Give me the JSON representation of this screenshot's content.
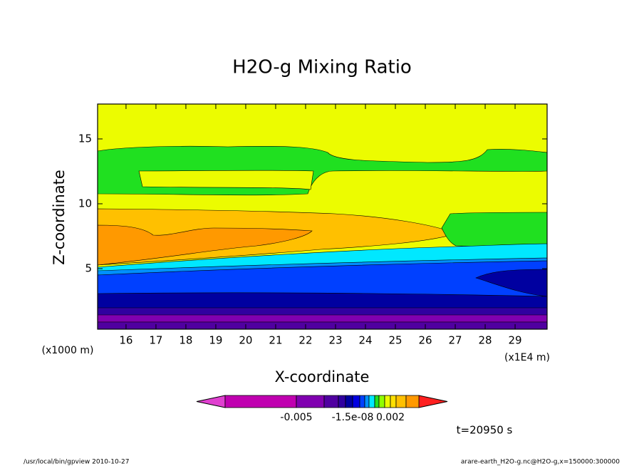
{
  "chart_data": {
    "type": "contour",
    "title": "H2O-g Mixing Ratio",
    "x_label": "X-coordinate",
    "y_label": "Z-coordinate",
    "x_unit": "(x1E4 m)",
    "y_unit": "(x1000 m)",
    "xlim": [
      15.05,
      30.07
    ],
    "ylim": [
      0.33,
      17.69
    ],
    "xticks": [
      16,
      17,
      18,
      19,
      20,
      21,
      22,
      23,
      24,
      25,
      26,
      27,
      28,
      29
    ],
    "yticks": [
      5,
      10,
      15
    ],
    "colorbar": {
      "levels": [
        -0.01,
        -0.005,
        -0.003,
        -0.002,
        -0.001,
        -1.5e-08,
        0.0002,
        0.0004,
        0.0006,
        0.0008,
        0.001,
        0.0012,
        0.002,
        0.003,
        0.004,
        0.005
      ],
      "colors": [
        "#c000b0",
        "#8000b0",
        "#5000a0",
        "#3000a0",
        "#0000a0",
        "#0000e0",
        "#0040ff",
        "#0090ff",
        "#00e8ff",
        "#20e020",
        "#90ff00",
        "#ecfc00",
        "#ffe000",
        "#ffc000",
        "#ff9900"
      ],
      "under_color": "#e040d0",
      "over_color": "#ff2020",
      "ticks": [
        {
          "value": -0.005,
          "label": "-0.005"
        },
        {
          "value": -1.5e-08,
          "label": "-1.5e-08"
        },
        {
          "value": 0.002,
          "label": "0.002"
        }
      ]
    },
    "annotation": "t=20950 s",
    "footer_left": "/usr/local/bin/gpview  2010-10-27",
    "footer_right": "arare-earth_H2O-g.nc@H2O-g,x=150000:300000"
  }
}
